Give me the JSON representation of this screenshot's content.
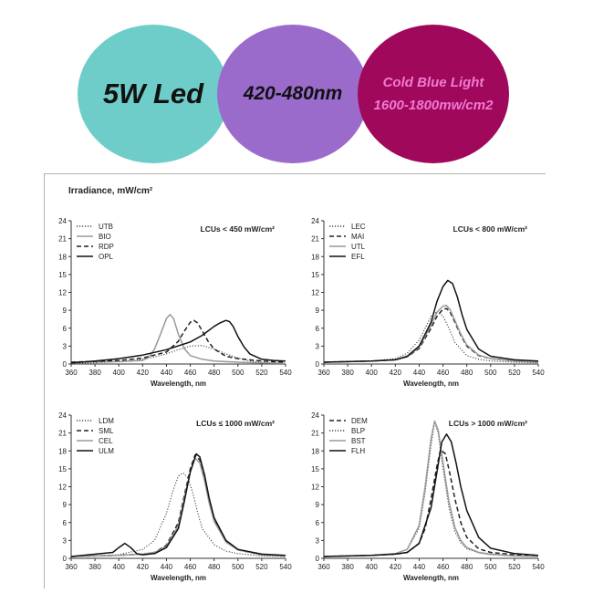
{
  "banner": {
    "circle1": {
      "text": "5W Led",
      "color": "#6ecdc9"
    },
    "circle2": {
      "text": "420-480nm",
      "color": "#9b6bcc"
    },
    "circle3": {
      "line1": "Cold Blue Light",
      "line2": "1600-1800mw/cm2",
      "color": "#a0085c",
      "text_color": "#f07ad2"
    }
  },
  "figure": {
    "ylabel": "Irradiance, mW/cm²"
  },
  "chart_data": [
    {
      "type": "line",
      "title": "LCUs < 450 mW/cm²",
      "xlabel": "Wavelength, nm",
      "xlim": [
        360,
        540
      ],
      "ylim": [
        0,
        24
      ],
      "xticks": [
        360,
        380,
        400,
        420,
        440,
        460,
        480,
        500,
        520,
        540
      ],
      "yticks": [
        0,
        3,
        6,
        9,
        12,
        15,
        18,
        21,
        24
      ],
      "legend": "top-left",
      "series": [
        {
          "name": "UTB",
          "style": "dotted",
          "color": "#444444",
          "x": [
            360,
            380,
            400,
            420,
            430,
            440,
            450,
            460,
            470,
            480,
            490,
            500,
            510,
            520,
            530,
            540
          ],
          "y": [
            0.1,
            0.2,
            0.4,
            0.8,
            1.2,
            1.7,
            2.4,
            3.0,
            3.1,
            2.5,
            1.7,
            1.0,
            0.5,
            0.3,
            0.2,
            0.1
          ]
        },
        {
          "name": "BIO",
          "style": "solid",
          "color": "#999999",
          "x": [
            360,
            400,
            420,
            425,
            430,
            435,
            440,
            443,
            446,
            450,
            455,
            460,
            470,
            480,
            500,
            520,
            540
          ],
          "y": [
            0.3,
            0.4,
            0.6,
            1.1,
            2.5,
            5.0,
            7.6,
            8.3,
            7.6,
            5.0,
            2.6,
            1.4,
            0.8,
            0.5,
            0.3,
            0.2,
            0.1
          ]
        },
        {
          "name": "RDP",
          "style": "dashed",
          "color": "#222222",
          "x": [
            360,
            400,
            420,
            440,
            450,
            455,
            460,
            463,
            466,
            470,
            475,
            480,
            490,
            500,
            520,
            540
          ],
          "y": [
            0.3,
            0.6,
            1.0,
            2.0,
            3.8,
            5.5,
            7.0,
            7.3,
            6.9,
            5.6,
            3.8,
            2.5,
            1.3,
            0.9,
            0.5,
            0.3
          ]
        },
        {
          "name": "OPL",
          "style": "solid",
          "color": "#111111",
          "x": [
            360,
            380,
            400,
            420,
            440,
            460,
            470,
            480,
            485,
            490,
            493,
            496,
            500,
            505,
            510,
            520,
            530,
            540
          ],
          "y": [
            0.2,
            0.5,
            0.9,
            1.5,
            2.4,
            3.7,
            4.8,
            6.3,
            6.9,
            7.3,
            7.1,
            6.3,
            4.6,
            2.9,
            1.7,
            0.8,
            0.6,
            0.5
          ]
        }
      ]
    },
    {
      "type": "line",
      "title": "LCUs < 800 mW/cm²",
      "xlabel": "Wavelength, nm",
      "xlim": [
        360,
        540
      ],
      "ylim": [
        0,
        24
      ],
      "xticks": [
        360,
        380,
        400,
        420,
        440,
        460,
        480,
        500,
        520,
        540
      ],
      "yticks": [
        0,
        3,
        6,
        9,
        12,
        15,
        18,
        21,
        24
      ],
      "legend": "top-left",
      "series": [
        {
          "name": "LEC",
          "style": "dotted",
          "color": "#444444",
          "x": [
            360,
            400,
            420,
            430,
            440,
            445,
            450,
            455,
            460,
            465,
            470,
            480,
            490,
            500,
            520,
            540
          ],
          "y": [
            0.3,
            0.5,
            0.9,
            1.8,
            4.0,
            6.0,
            8.0,
            8.8,
            8.0,
            6.0,
            3.6,
            1.4,
            0.8,
            0.5,
            0.3,
            0.2
          ]
        },
        {
          "name": "MAI",
          "style": "dashed",
          "color": "#222222",
          "x": [
            360,
            400,
            420,
            430,
            440,
            450,
            455,
            460,
            463,
            466,
            470,
            475,
            480,
            490,
            500,
            520,
            540
          ],
          "y": [
            0.3,
            0.5,
            0.7,
            1.2,
            2.6,
            6.0,
            8.0,
            9.2,
            9.3,
            8.7,
            7.0,
            4.8,
            3.0,
            1.4,
            0.9,
            0.5,
            0.3
          ]
        },
        {
          "name": "UTL",
          "style": "solid",
          "color": "#999999",
          "x": [
            360,
            400,
            420,
            430,
            440,
            450,
            455,
            460,
            463,
            466,
            470,
            475,
            480,
            490,
            500,
            520,
            540
          ],
          "y": [
            0.3,
            0.5,
            0.7,
            1.2,
            2.8,
            6.5,
            8.7,
            9.7,
            9.8,
            9.1,
            7.3,
            5.0,
            3.2,
            1.5,
            0.9,
            0.5,
            0.3
          ]
        },
        {
          "name": "EFL",
          "style": "solid",
          "color": "#111111",
          "x": [
            360,
            400,
            420,
            430,
            440,
            450,
            455,
            460,
            464,
            468,
            472,
            476,
            480,
            490,
            500,
            520,
            540
          ],
          "y": [
            0.3,
            0.5,
            0.7,
            1.3,
            3.0,
            7.0,
            10.5,
            13.0,
            14.0,
            13.5,
            11.3,
            8.3,
            5.8,
            2.5,
            1.3,
            0.7,
            0.5
          ]
        }
      ]
    },
    {
      "type": "line",
      "title": "LCUs ≤ 1000 mW/cm²",
      "xlabel": "Wavelength, nm",
      "xlim": [
        360,
        540
      ],
      "ylim": [
        0,
        24
      ],
      "xticks": [
        360,
        380,
        400,
        420,
        440,
        460,
        480,
        500,
        520,
        540
      ],
      "yticks": [
        0,
        3,
        6,
        9,
        12,
        15,
        18,
        21,
        24
      ],
      "legend": "top-left",
      "series": [
        {
          "name": "LDM",
          "style": "dotted",
          "color": "#444444",
          "x": [
            360,
            400,
            420,
            430,
            440,
            445,
            450,
            454,
            458,
            462,
            466,
            470,
            480,
            490,
            500,
            520,
            540
          ],
          "y": [
            0.3,
            0.6,
            1.5,
            3.0,
            7.5,
            11.0,
            13.8,
            14.3,
            13.5,
            11.0,
            7.8,
            5.0,
            2.3,
            1.2,
            0.8,
            0.4,
            0.3
          ]
        },
        {
          "name": "SML",
          "style": "dashed",
          "color": "#222222",
          "x": [
            360,
            400,
            420,
            430,
            440,
            450,
            455,
            460,
            464,
            468,
            472,
            476,
            480,
            490,
            500,
            520,
            540
          ],
          "y": [
            0.3,
            0.5,
            0.7,
            1.0,
            2.2,
            6.0,
            10.5,
            15.0,
            17.3,
            16.5,
            13.5,
            9.5,
            6.5,
            2.8,
            1.4,
            0.6,
            0.4
          ]
        },
        {
          "name": "CEL",
          "style": "solid",
          "color": "#999999",
          "x": [
            360,
            400,
            420,
            430,
            440,
            450,
            455,
            460,
            464,
            468,
            472,
            476,
            480,
            490,
            500,
            520,
            540
          ],
          "y": [
            0.3,
            0.5,
            0.7,
            1.0,
            2.0,
            5.5,
            10.0,
            14.5,
            16.8,
            16.0,
            13.0,
            9.2,
            6.2,
            2.7,
            1.4,
            0.6,
            0.4
          ]
        },
        {
          "name": "ULM",
          "style": "solid",
          "color": "#111111",
          "x": [
            360,
            395,
            400,
            405,
            410,
            415,
            420,
            430,
            440,
            450,
            455,
            460,
            465,
            468,
            472,
            476,
            480,
            490,
            500,
            520,
            540
          ],
          "y": [
            0.3,
            1.0,
            1.8,
            2.5,
            1.8,
            0.8,
            0.6,
            0.8,
            1.8,
            5.0,
            9.5,
            14.5,
            17.5,
            17.0,
            14.0,
            10.0,
            6.8,
            3.0,
            1.5,
            0.7,
            0.5
          ]
        }
      ]
    },
    {
      "type": "line",
      "title": "LCUs > 1000 mW/cm²",
      "xlabel": "Wavelength, nm",
      "xlim": [
        360,
        540
      ],
      "ylim": [
        0,
        24
      ],
      "xticks": [
        360,
        380,
        400,
        420,
        440,
        460,
        480,
        500,
        520,
        540
      ],
      "yticks": [
        0,
        3,
        6,
        9,
        12,
        15,
        18,
        21,
        24
      ],
      "legend": "top-left",
      "series": [
        {
          "name": "DEM",
          "style": "dashed",
          "color": "#222222",
          "x": [
            360,
            400,
            420,
            430,
            440,
            445,
            450,
            455,
            458,
            462,
            466,
            470,
            475,
            480,
            490,
            500,
            520,
            540
          ],
          "y": [
            0.3,
            0.5,
            0.7,
            1.0,
            2.5,
            5.0,
            10.0,
            15.5,
            18.2,
            17.5,
            14.0,
            10.0,
            6.0,
            3.5,
            1.6,
            1.0,
            0.6,
            0.4
          ]
        },
        {
          "name": "BLP",
          "style": "dotted",
          "color": "#444444",
          "x": [
            360,
            400,
            420,
            430,
            440,
            445,
            450,
            453,
            456,
            460,
            465,
            470,
            475,
            480,
            490,
            500,
            520,
            540
          ],
          "y": [
            0.3,
            0.5,
            0.8,
            1.5,
            5.0,
            11.0,
            19.0,
            22.8,
            21.0,
            15.0,
            8.5,
            4.5,
            2.6,
            1.6,
            0.9,
            0.6,
            0.4,
            0.3
          ]
        },
        {
          "name": "BST",
          "style": "solid",
          "color": "#999999",
          "x": [
            360,
            400,
            420,
            430,
            440,
            445,
            450,
            453,
            456,
            460,
            465,
            470,
            475,
            480,
            490,
            500,
            520,
            540
          ],
          "y": [
            0.3,
            0.5,
            0.8,
            1.5,
            5.5,
            12.0,
            20.0,
            23.0,
            21.5,
            16.0,
            9.5,
            5.2,
            3.0,
            1.8,
            1.0,
            0.7,
            0.4,
            0.3
          ]
        },
        {
          "name": "FLH",
          "style": "solid",
          "color": "#111111",
          "x": [
            360,
            400,
            420,
            430,
            440,
            450,
            455,
            459,
            463,
            467,
            471,
            475,
            480,
            490,
            500,
            520,
            540
          ],
          "y": [
            0.3,
            0.5,
            0.7,
            1.0,
            2.5,
            8.5,
            14.5,
            19.5,
            20.8,
            19.5,
            16.0,
            12.0,
            8.0,
            3.5,
            1.7,
            0.8,
            0.5
          ]
        }
      ]
    }
  ]
}
